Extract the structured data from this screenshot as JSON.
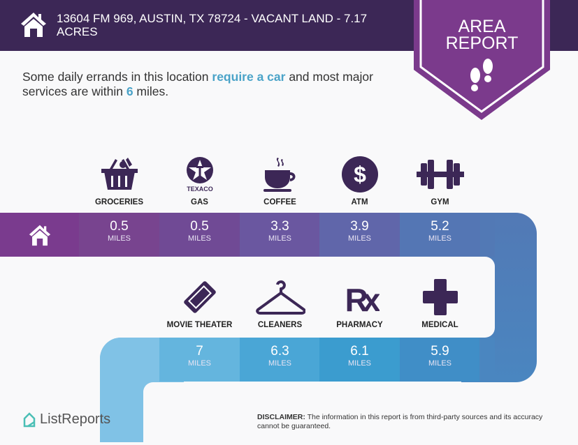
{
  "header": {
    "title": "13604 FM 969, AUSTIN, TX 78724 - VACANT LAND - 7.17 ACRES"
  },
  "badge": {
    "line1": "AREA",
    "line2": "REPORT"
  },
  "intro": {
    "p1": "Some daily errands in this location ",
    "hl1": "require a car",
    "p2": " and most major services are within ",
    "hl2": "6",
    "p3": " miles."
  },
  "unit": "MILES",
  "top_row": [
    {
      "label": "GROCERIES",
      "value": "0.5",
      "icon": "basket-icon",
      "color": "#78448f"
    },
    {
      "label": "GAS",
      "value": "0.5",
      "icon": "texaco-icon",
      "color": "#704a95",
      "brand": "TEXACO"
    },
    {
      "label": "COFFEE",
      "value": "3.3",
      "icon": "coffee-icon",
      "color": "#6a57a0"
    },
    {
      "label": "ATM",
      "value": "3.9",
      "icon": "dollar-icon",
      "color": "#6066aa"
    },
    {
      "label": "GYM",
      "value": "5.2",
      "icon": "dumbbell-icon",
      "color": "#5476b4"
    }
  ],
  "bottom_row": [
    {
      "label": "MOVIE THEATER",
      "value": "7",
      "icon": "ticket-icon",
      "color": "#64b5de"
    },
    {
      "label": "CLEANERS",
      "value": "6.3",
      "icon": "hanger-icon",
      "color": "#4aa6d6"
    },
    {
      "label": "PHARMACY",
      "value": "6.1",
      "icon": "rx-icon",
      "color": "#3b9ccf"
    },
    {
      "label": "MEDICAL",
      "value": "5.9",
      "icon": "cross-icon",
      "color": "#408ec7"
    }
  ],
  "colors": {
    "header": "#3c2756",
    "badge": "#7b3a8c",
    "accent": "#4aa3c8",
    "icon": "#3c2756"
  },
  "footer": {
    "logo": "ListReports",
    "disclaimer_label": "DISCLAIMER:",
    "disclaimer": " The information in this report is from third-party sources and its accuracy cannot be guaranteed."
  }
}
